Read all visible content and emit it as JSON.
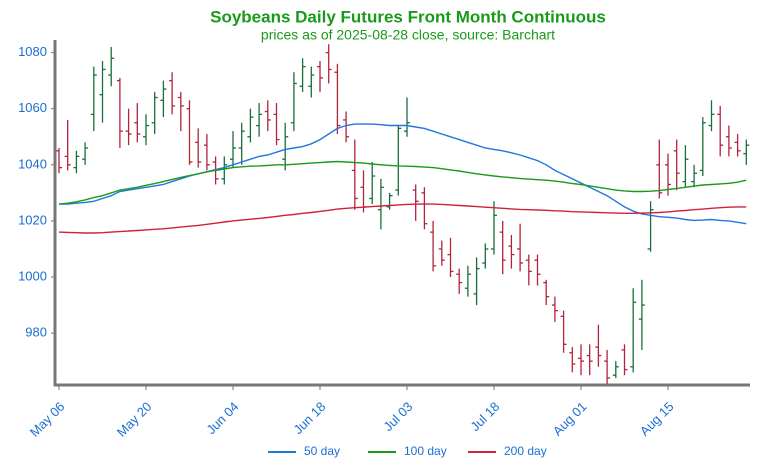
{
  "chart_data": {
    "type": "ohlc",
    "title": "Soybeans Daily Futures Front Month Continuous",
    "subtitle": "prices as of 2025-08-28 close, source: Barchart",
    "categories": [
      "May 06",
      null,
      null,
      null,
      null,
      null,
      null,
      null,
      null,
      null,
      "May 20",
      null,
      null,
      null,
      null,
      null,
      null,
      null,
      null,
      null,
      "Jun 04",
      null,
      null,
      null,
      null,
      null,
      null,
      null,
      null,
      null,
      "Jun 18",
      null,
      null,
      null,
      null,
      null,
      null,
      null,
      null,
      null,
      "Jul 03",
      null,
      null,
      null,
      null,
      null,
      null,
      null,
      null,
      null,
      "Jul 18",
      null,
      null,
      null,
      null,
      null,
      null,
      null,
      null,
      null,
      "Aug 01",
      null,
      null,
      null,
      null,
      null,
      null,
      null,
      null,
      null,
      "Aug 15",
      null,
      null,
      null,
      null,
      null,
      null,
      null,
      null,
      null
    ],
    "open": [
      1045,
      1043,
      1039,
      1042,
      1058,
      1065,
      1072,
      1070,
      1052,
      1055,
      1050,
      1055,
      1063,
      1070,
      1064,
      1060,
      1048,
      1047,
      1041,
      1035,
      1042,
      1046,
      1050,
      1054,
      1059,
      1058,
      1042,
      1055,
      1068,
      1068,
      1075,
      1080,
      1073,
      1056,
      1038,
      1032,
      1028,
      1024,
      1025,
      1031,
      1052,
      1031,
      1030,
      1016,
      1010,
      1008,
      1001,
      996,
      994,
      1005,
      1010,
      1016,
      1011,
      1010,
      1006,
      1006,
      998,
      990,
      986,
      973,
      971,
      972,
      975,
      970,
      965,
      974,
      968,
      985,
      1010,
      1040,
      1040,
      1045,
      1034,
      1034,
      1038,
      1054,
      1058,
      1050,
      1048,
      1044
    ],
    "high": [
      1046,
      1056,
      1045,
      1048,
      1075,
      1077,
      1082,
      1071,
      1060,
      1062,
      1058,
      1066,
      1070,
      1073,
      1066,
      1063,
      1053,
      1051,
      1043,
      1043,
      1052,
      1055,
      1060,
      1062,
      1063,
      1062,
      1055,
      1073,
      1078,
      1075,
      1077,
      1083,
      1076,
      1059,
      1049,
      1038,
      1041,
      1035,
      1030,
      1054,
      1064,
      1033,
      1032,
      1020,
      1013,
      1014,
      1003,
      1004,
      1007,
      1012,
      1027,
      1020,
      1015,
      1019,
      1008,
      1008,
      999,
      993,
      988,
      975,
      976,
      976,
      983,
      974,
      970,
      976,
      996,
      999,
      1027,
      1049,
      1044,
      1049,
      1047,
      1040,
      1057,
      1063,
      1061,
      1054,
      1051,
      1049
    ],
    "low": [
      1037,
      1038,
      1037,
      1040,
      1052,
      1055,
      1068,
      1046,
      1047,
      1048,
      1047,
      1051,
      1057,
      1058,
      1052,
      1040,
      1039,
      1038,
      1033,
      1033,
      1039,
      1040,
      1048,
      1050,
      1052,
      1047,
      1038,
      1052,
      1066,
      1064,
      1066,
      1069,
      1051,
      1048,
      1024,
      1023,
      1026,
      1017,
      1024,
      1029,
      1050,
      1020,
      1017,
      1002,
      1004,
      1000,
      994,
      993,
      990,
      1003,
      1008,
      1001,
      1003,
      1002,
      997,
      997,
      990,
      984,
      973,
      966,
      965,
      965,
      968,
      962,
      964,
      965,
      966,
      974,
      1009,
      1028,
      1029,
      1031,
      1032,
      1032,
      1036,
      1052,
      1043,
      1043,
      1043,
      1040
    ],
    "close": [
      1039,
      1040,
      1043,
      1046,
      1072,
      1074,
      1078,
      1052,
      1051,
      1051,
      1054,
      1064,
      1067,
      1061,
      1061,
      1041,
      1041,
      1040,
      1035,
      1040,
      1046,
      1052,
      1057,
      1058,
      1056,
      1049,
      1050,
      1069,
      1075,
      1072,
      1071,
      1074,
      1054,
      1050,
      1028,
      1025,
      1036,
      1032,
      1029,
      1053,
      1055,
      1027,
      1019,
      1004,
      1006,
      1002,
      998,
      1001,
      1003,
      1010,
      1022,
      1006,
      1008,
      1005,
      1002,
      1001,
      993,
      988,
      976,
      969,
      970,
      970,
      972,
      964,
      968,
      967,
      991,
      990,
      1024,
      1030,
      1033,
      1037,
      1042,
      1037,
      1055,
      1058,
      1047,
      1046,
      1045,
      1047
    ],
    "up_color": "#1a6e3a",
    "down_color": "#b0243c",
    "lines": [
      {
        "name": "50 day",
        "color": "#1f77e0",
        "values": [
          1026,
          1026,
          1026.3,
          1026.6,
          1027,
          1028,
          1029,
          1030.5,
          1031,
          1031.5,
          1032,
          1032.5,
          1033,
          1034,
          1035,
          1036,
          1036.8,
          1037.5,
          1038.3,
          1039,
          1040,
          1041,
          1042,
          1043,
          1043.5,
          1044.5,
          1045.5,
          1046,
          1046.5,
          1047.5,
          1049,
          1051,
          1053,
          1054,
          1054.5,
          1054.5,
          1054.5,
          1054.3,
          1054,
          1054,
          1054,
          1053.5,
          1053,
          1052,
          1051,
          1050,
          1049,
          1048,
          1047,
          1046,
          1045.5,
          1045,
          1044.3,
          1043.5,
          1042.5,
          1041.5,
          1040,
          1038,
          1036.5,
          1035,
          1033.5,
          1032,
          1030.5,
          1029,
          1027,
          1025,
          1023.5,
          1022.5,
          1022,
          1021.5,
          1021.3,
          1021,
          1020.5,
          1020.2,
          1020.3,
          1020.5,
          1020.2,
          1020,
          1019.5,
          1019
        ]
      },
      {
        "name": "100 day",
        "color": "#1a9a1a",
        "values": [
          1026,
          1026.3,
          1026.8,
          1027.5,
          1028.3,
          1029,
          1030,
          1031,
          1031.5,
          1032,
          1032.7,
          1033.3,
          1034,
          1034.8,
          1035.5,
          1036.2,
          1036.8,
          1037.5,
          1038,
          1038.5,
          1039,
          1039.3,
          1039.5,
          1039.6,
          1039.8,
          1040,
          1040,
          1040.2,
          1040.4,
          1040.6,
          1040.8,
          1041,
          1041.2,
          1041,
          1040.8,
          1040.6,
          1040.3,
          1040,
          1039.8,
          1039.6,
          1039.5,
          1039.4,
          1039.2,
          1039,
          1038.6,
          1038.2,
          1037.8,
          1037.3,
          1036.8,
          1036.4,
          1036,
          1035.7,
          1035.4,
          1035.1,
          1034.9,
          1034.7,
          1034.5,
          1034.2,
          1033.8,
          1033.3,
          1033,
          1032.5,
          1032,
          1031.5,
          1031,
          1030.7,
          1030.5,
          1030.5,
          1030.6,
          1030.8,
          1031.2,
          1031.6,
          1032,
          1032.4,
          1032.8,
          1033,
          1033.2,
          1033.4,
          1033.8,
          1034.5
        ]
      },
      {
        "name": "200 day",
        "color": "#d02040",
        "values": [
          1016,
          1015.9,
          1015.8,
          1015.7,
          1015.7,
          1015.8,
          1016,
          1016.2,
          1016.4,
          1016.6,
          1016.8,
          1017,
          1017.2,
          1017.5,
          1017.8,
          1018.1,
          1018.4,
          1018.8,
          1019.2,
          1019.6,
          1020,
          1020.3,
          1020.6,
          1020.9,
          1021.2,
          1021.6,
          1022,
          1022.3,
          1022.7,
          1023,
          1023.4,
          1023.8,
          1024.2,
          1024.5,
          1024.7,
          1024.9,
          1025.1,
          1025.3,
          1025.5,
          1025.7,
          1025.9,
          1026,
          1026,
          1026,
          1025.9,
          1025.7,
          1025.5,
          1025.3,
          1025.1,
          1024.9,
          1024.7,
          1024.5,
          1024.3,
          1024.1,
          1024,
          1023.9,
          1023.8,
          1023.6,
          1023.5,
          1023.3,
          1023.2,
          1023.1,
          1023,
          1022.9,
          1022.8,
          1022.7,
          1022.7,
          1022.8,
          1022.9,
          1023,
          1023.2,
          1023.5,
          1023.7,
          1024,
          1024.2,
          1024.5,
          1024.7,
          1024.9,
          1025,
          1025
        ]
      }
    ],
    "ylim": [
      961.5,
      1084.5
    ],
    "yticks": [
      980,
      1000,
      1020,
      1040,
      1060,
      1080
    ]
  }
}
